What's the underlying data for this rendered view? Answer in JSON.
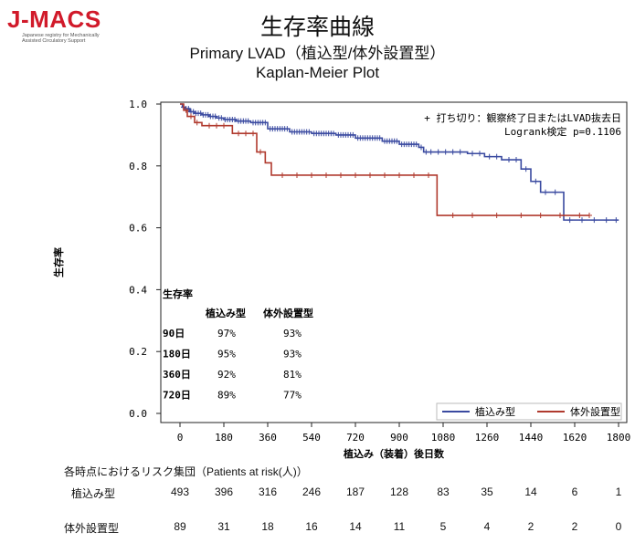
{
  "logo": {
    "text": "J-MACS",
    "sub1": "Japanese registry for Mechanically",
    "sub2": "Assisted Circulatory Support"
  },
  "titles": {
    "main": "生存率曲線",
    "sub": "Primary LVAD（植込型/体外設置型）",
    "plot": "Kaplan-Meier Plot"
  },
  "colors": {
    "implant": "#3a4aa0",
    "external": "#b03a2e",
    "axis": "#222222"
  },
  "chart_data": {
    "type": "line",
    "step": true,
    "xlabel": "植込み（装着）後日数",
    "ylabel": "生存率",
    "xlim": [
      0,
      1800
    ],
    "ylim": [
      0,
      1.0
    ],
    "xticks": [
      0,
      180,
      360,
      540,
      720,
      900,
      1080,
      1260,
      1440,
      1620,
      1800
    ],
    "yticks": [
      "0.0",
      "0.2",
      "0.4",
      "0.6",
      "0.8",
      "1.0"
    ],
    "series": [
      {
        "name": "植込み型",
        "color": "#3a4aa0",
        "steps": [
          [
            0,
            1.0
          ],
          [
            10,
            0.99
          ],
          [
            20,
            0.985
          ],
          [
            40,
            0.975
          ],
          [
            60,
            0.97
          ],
          [
            90,
            0.965
          ],
          [
            120,
            0.96
          ],
          [
            150,
            0.955
          ],
          [
            180,
            0.95
          ],
          [
            230,
            0.945
          ],
          [
            290,
            0.94
          ],
          [
            360,
            0.92
          ],
          [
            450,
            0.91
          ],
          [
            540,
            0.905
          ],
          [
            640,
            0.9
          ],
          [
            720,
            0.89
          ],
          [
            830,
            0.88
          ],
          [
            900,
            0.87
          ],
          [
            980,
            0.86
          ],
          [
            1000,
            0.845
          ],
          [
            1180,
            0.84
          ],
          [
            1250,
            0.83
          ],
          [
            1320,
            0.82
          ],
          [
            1400,
            0.79
          ],
          [
            1440,
            0.75
          ],
          [
            1480,
            0.715
          ],
          [
            1570,
            0.715
          ],
          [
            1575,
            0.625
          ],
          [
            1800,
            0.625
          ]
        ],
        "censor_x": [
          15,
          25,
          35,
          45,
          55,
          65,
          75,
          85,
          95,
          105,
          115,
          125,
          135,
          145,
          160,
          170,
          185,
          195,
          205,
          215,
          225,
          240,
          250,
          260,
          270,
          280,
          300,
          310,
          320,
          330,
          340,
          350,
          370,
          380,
          390,
          400,
          410,
          420,
          430,
          440,
          460,
          470,
          480,
          490,
          500,
          510,
          520,
          530,
          550,
          560,
          570,
          580,
          590,
          600,
          610,
          620,
          630,
          650,
          660,
          670,
          680,
          690,
          700,
          710,
          730,
          740,
          750,
          760,
          770,
          780,
          790,
          800,
          810,
          820,
          840,
          850,
          860,
          870,
          880,
          890,
          910,
          920,
          930,
          940,
          950,
          960,
          970,
          990,
          1010,
          1030,
          1060,
          1090,
          1120,
          1150,
          1200,
          1230,
          1270,
          1300,
          1350,
          1380,
          1420,
          1460,
          1500,
          1540,
          1600,
          1650,
          1700,
          1750,
          1790
        ]
      },
      {
        "name": "体外設置型",
        "color": "#b03a2e",
        "steps": [
          [
            0,
            1.0
          ],
          [
            15,
            0.98
          ],
          [
            30,
            0.96
          ],
          [
            60,
            0.94
          ],
          [
            90,
            0.93
          ],
          [
            210,
            0.93
          ],
          [
            215,
            0.905
          ],
          [
            310,
            0.905
          ],
          [
            315,
            0.845
          ],
          [
            345,
            0.845
          ],
          [
            350,
            0.81
          ],
          [
            370,
            0.81
          ],
          [
            375,
            0.77
          ],
          [
            1050,
            0.77
          ],
          [
            1055,
            0.64
          ],
          [
            1680,
            0.64
          ]
        ],
        "censor_x": [
          25,
          45,
          70,
          120,
          150,
          180,
          240,
          270,
          300,
          330,
          420,
          480,
          540,
          600,
          660,
          720,
          780,
          840,
          900,
          960,
          1020,
          1120,
          1200,
          1300,
          1400,
          1480,
          1560,
          1640,
          1680
        ]
      }
    ],
    "annotations": [
      "+ 打ち切り：観察終了日またはLVAD抜去日",
      "Logrank検定 p=0.1106"
    ],
    "legend_position": "bottom-right",
    "survival_table": {
      "title": "生存率",
      "headers": [
        "植込み型",
        "体外設置型"
      ],
      "rows": [
        {
          "label": "90日",
          "values": [
            "97%",
            "93%"
          ]
        },
        {
          "label": "180日",
          "values": [
            "95%",
            "93%"
          ]
        },
        {
          "label": "360日",
          "values": [
            "92%",
            "81%"
          ]
        },
        {
          "label": "720日",
          "values": [
            "89%",
            "77%"
          ]
        }
      ]
    }
  },
  "risk_table": {
    "title": "各時点におけるリスク集団（Patients at risk(人)）",
    "rows": [
      {
        "label": "植込み型",
        "counts": [
          "493",
          "396",
          "316",
          "246",
          "187",
          "128",
          "83",
          "35",
          "14",
          "6",
          "1"
        ]
      },
      {
        "label": "体外設置型",
        "counts": [
          "89",
          "31",
          "18",
          "16",
          "14",
          "11",
          "5",
          "4",
          "2",
          "2",
          "0"
        ]
      }
    ]
  }
}
